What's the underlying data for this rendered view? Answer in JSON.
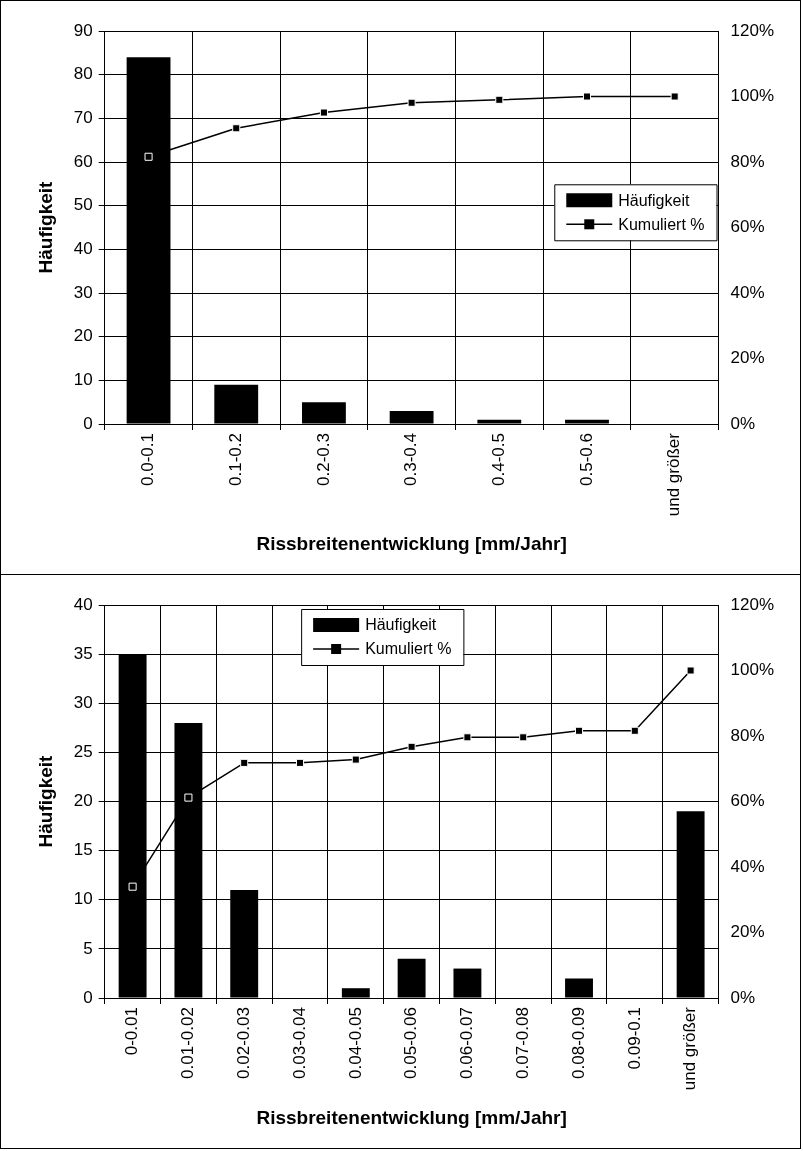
{
  "chart_data": [
    {
      "type": "bar",
      "xlabel": "Rissbreitenentwicklung [mm/Jahr]",
      "ylabel": "Häufigkeit",
      "categories": [
        "0.0-0.1",
        "0.1-0.2",
        "0.2-0.3",
        "0.3-0.4",
        "0.4-0.5",
        "0.5-0.6",
        "und größer"
      ],
      "series": [
        {
          "name": "Häufigkeit",
          "type": "bar",
          "color": "#000000",
          "values": [
            84,
            9,
            5,
            3,
            1,
            1,
            0
          ]
        },
        {
          "name": "Kumuliert %",
          "type": "line",
          "axis": "y2",
          "color": "#000000",
          "values": [
            81.6,
            90.3,
            95.1,
            98.1,
            99.0,
            100,
            100
          ]
        }
      ],
      "ylim": [
        0,
        90
      ],
      "yticks": [
        0,
        10,
        20,
        30,
        40,
        50,
        60,
        70,
        80,
        90
      ],
      "y2lim": [
        0,
        120
      ],
      "y2ticks": [
        {
          "value": 0,
          "label": "0%"
        },
        {
          "value": 20,
          "label": "20%"
        },
        {
          "value": 40,
          "label": "40%"
        },
        {
          "value": 60,
          "label": "60%"
        },
        {
          "value": 80,
          "label": "80%"
        },
        {
          "value": 100,
          "label": "100%"
        },
        {
          "value": 120,
          "label": "120%"
        }
      ],
      "grid": true,
      "legend": "right",
      "marker": "square",
      "line_style": "solid"
    },
    {
      "type": "bar",
      "xlabel": "Rissbreitenentwicklung [mm/Jahr]",
      "ylabel": "Häufigkeit",
      "categories": [
        "0-0.01",
        "0.01-0.02",
        "0.02-0.03",
        "0.03-0.04",
        "0.04-0.05",
        "0.05-0.06",
        "0.06-0.07",
        "0.07-0.08",
        "0.08-0.09",
        "0.09-0.1",
        "und größer"
      ],
      "series": [
        {
          "name": "Häufigkeit",
          "type": "bar",
          "color": "#000000",
          "values": [
            35,
            28,
            11,
            0,
            1,
            4,
            3,
            0,
            2,
            0,
            19
          ]
        },
        {
          "name": "Kumuliert %",
          "type": "line",
          "axis": "y2",
          "color": "#000000",
          "values": [
            34.0,
            61.2,
            71.8,
            71.8,
            72.8,
            76.7,
            79.6,
            79.6,
            81.6,
            81.6,
            100
          ]
        }
      ],
      "ylim": [
        0,
        40
      ],
      "yticks": [
        0,
        5,
        10,
        15,
        20,
        25,
        30,
        35,
        40
      ],
      "y2lim": [
        0,
        120
      ],
      "y2ticks": [
        {
          "value": 0,
          "label": "0%"
        },
        {
          "value": 20,
          "label": "20%"
        },
        {
          "value": 40,
          "label": "40%"
        },
        {
          "value": 60,
          "label": "60%"
        },
        {
          "value": 80,
          "label": "80%"
        },
        {
          "value": 100,
          "label": "100%"
        },
        {
          "value": 120,
          "label": "120%"
        }
      ],
      "grid": true,
      "legend": "top",
      "marker": "square",
      "line_style": "solid"
    }
  ]
}
